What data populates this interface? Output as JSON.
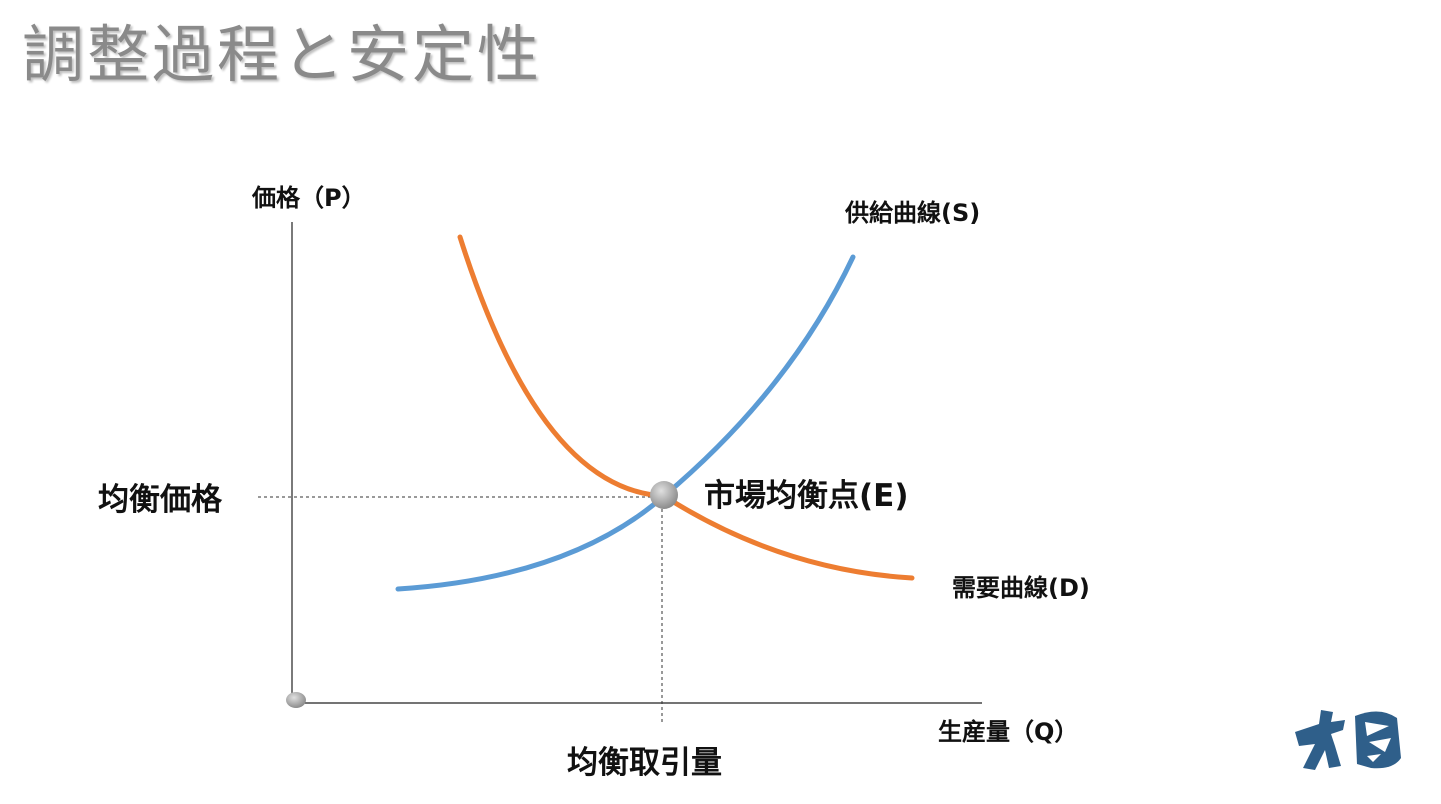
{
  "title": "調整過程と安定性",
  "diagram": {
    "y_axis_label": "価格（P）",
    "x_axis_label": "生産量（Q）",
    "supply_label": "供給曲線(S)",
    "demand_label": "需要曲線(D)",
    "equilibrium_label": "市場均衡点(E)",
    "equilibrium_price_label": "均衡価格",
    "equilibrium_quantity_label": "均衡取引量"
  },
  "colors": {
    "supply_curve": "#5b9bd5",
    "demand_curve": "#ed7d31",
    "axis": "#222222",
    "equilibrium_point": "#a6a6a6",
    "title": "#8a8a8a",
    "logo": "#2f5f8a"
  },
  "logo": {
    "icon": "brand-logo-icon"
  }
}
